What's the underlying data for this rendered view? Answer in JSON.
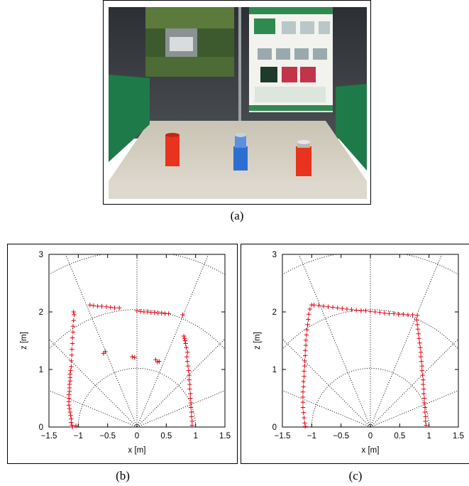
{
  "figure": {
    "photo_caption": "(a)",
    "plot_b_caption": "(b)",
    "plot_c_caption": "(c)"
  },
  "colors": {
    "marker": "#e8000e",
    "grid": "#000000",
    "wall_green": "#1f7a4a",
    "cylinder_red": "#e8331e",
    "cylinder_blue": "#2d6fd1"
  },
  "chart_data": [
    {
      "id": "b",
      "type": "scatter",
      "marker": "plus",
      "xlabel": "x [m]",
      "ylabel": "z [m]",
      "xlim": [
        -1.5,
        1.5
      ],
      "ylim": [
        0,
        3
      ],
      "xticks": [
        "−1.5",
        "−1",
        "−0.5",
        "0",
        "0.5",
        "1",
        "1.5"
      ],
      "yticks": [
        "0",
        "1",
        "2",
        "3"
      ],
      "grid": "polar, dotted, radii 1/2/3 m, rays every 22.5 deg",
      "series": [
        {
          "values": [
            [
              -1.08,
              2.0
            ],
            [
              -1.07,
              1.95
            ],
            [
              -1.08,
              1.85
            ],
            [
              -1.09,
              1.75
            ],
            [
              -1.09,
              1.65
            ],
            [
              -1.1,
              1.55
            ],
            [
              -1.1,
              1.45
            ],
            [
              -1.11,
              1.35
            ],
            [
              -1.11,
              1.25
            ],
            [
              -1.12,
              1.15
            ],
            [
              -1.12,
              1.05
            ],
            [
              -1.13,
              0.98
            ],
            [
              -1.14,
              0.92
            ],
            [
              -1.14,
              0.86
            ],
            [
              -1.14,
              0.8
            ],
            [
              -1.15,
              0.74
            ],
            [
              -1.15,
              0.68
            ],
            [
              -1.15,
              0.62
            ],
            [
              -1.16,
              0.56
            ],
            [
              -1.16,
              0.5
            ],
            [
              -1.16,
              0.44
            ],
            [
              -1.16,
              0.38
            ],
            [
              -1.15,
              0.32
            ],
            [
              -1.14,
              0.26
            ],
            [
              -1.13,
              0.2
            ],
            [
              -1.12,
              0.14
            ],
            [
              -1.12,
              0.08
            ],
            [
              -1.11,
              0.03
            ],
            [
              -1.1,
              0.0
            ],
            [
              -1.04,
              0.02
            ],
            [
              -0.8,
              2.12
            ],
            [
              -0.74,
              2.11
            ],
            [
              -0.67,
              2.1
            ],
            [
              -0.6,
              2.1
            ],
            [
              -0.52,
              2.09
            ],
            [
              -0.45,
              2.08
            ],
            [
              -0.38,
              2.07
            ],
            [
              -0.3,
              2.07
            ],
            [
              0.0,
              2.02
            ],
            [
              0.06,
              2.01
            ],
            [
              0.12,
              2.0
            ],
            [
              0.18,
              2.0
            ],
            [
              0.24,
              1.99
            ],
            [
              0.3,
              1.99
            ],
            [
              0.36,
              1.98
            ],
            [
              0.42,
              1.98
            ],
            [
              0.48,
              1.97
            ],
            [
              0.54,
              1.97
            ],
            [
              0.78,
              1.95
            ],
            [
              0.8,
              1.58
            ],
            [
              0.81,
              1.54
            ],
            [
              0.82,
              1.5
            ],
            [
              0.83,
              1.45
            ],
            [
              0.84,
              1.38
            ],
            [
              0.86,
              1.3
            ],
            [
              0.85,
              1.22
            ],
            [
              0.86,
              1.14
            ],
            [
              0.87,
              1.06
            ],
            [
              0.88,
              0.98
            ],
            [
              0.89,
              0.9
            ],
            [
              0.89,
              0.82
            ],
            [
              0.9,
              0.74
            ],
            [
              0.9,
              0.66
            ],
            [
              0.91,
              0.58
            ],
            [
              0.91,
              0.5
            ],
            [
              0.92,
              0.42
            ],
            [
              0.92,
              0.34
            ],
            [
              0.93,
              0.26
            ],
            [
              0.93,
              0.18
            ],
            [
              0.94,
              0.1
            ],
            [
              0.94,
              0.03
            ],
            [
              -0.57,
              1.28
            ],
            [
              -0.54,
              1.31
            ],
            [
              -0.08,
              1.22
            ],
            [
              -0.04,
              1.21
            ],
            [
              0.32,
              1.17
            ],
            [
              0.35,
              1.13
            ],
            [
              0.38,
              1.14
            ]
          ]
        }
      ]
    },
    {
      "id": "c",
      "type": "scatter",
      "marker": "plus",
      "xlabel": "x [m]",
      "ylabel": "z [m]",
      "xlim": [
        -1.5,
        1.5
      ],
      "ylim": [
        0,
        3
      ],
      "xticks": [
        "−1.5",
        "−1",
        "−0.5",
        "0",
        "0.5",
        "1",
        "1.5"
      ],
      "yticks": [
        "0",
        "1",
        "2",
        "3"
      ],
      "grid": "polar, dotted, radii 1/2/3 m, rays every 22.5 deg",
      "series": [
        {
          "values": [
            [
              -1.0,
              2.12
            ],
            [
              -1.03,
              2.05
            ],
            [
              -1.05,
              1.96
            ],
            [
              -1.06,
              1.87
            ],
            [
              -1.07,
              1.78
            ],
            [
              -1.08,
              1.69
            ],
            [
              -1.09,
              1.6
            ],
            [
              -1.1,
              1.51
            ],
            [
              -1.1,
              1.42
            ],
            [
              -1.11,
              1.33
            ],
            [
              -1.11,
              1.24
            ],
            [
              -1.12,
              1.15
            ],
            [
              -1.12,
              1.06
            ],
            [
              -1.13,
              0.97
            ],
            [
              -1.13,
              0.88
            ],
            [
              -1.14,
              0.79
            ],
            [
              -1.14,
              0.7
            ],
            [
              -1.15,
              0.61
            ],
            [
              -1.15,
              0.52
            ],
            [
              -1.15,
              0.43
            ],
            [
              -1.15,
              0.34
            ],
            [
              -1.14,
              0.25
            ],
            [
              -1.13,
              0.16
            ],
            [
              -1.12,
              0.07
            ],
            [
              -1.11,
              0.01
            ],
            [
              -0.96,
              2.12
            ],
            [
              -0.88,
              2.11
            ],
            [
              -0.8,
              2.1
            ],
            [
              -0.72,
              2.09
            ],
            [
              -0.64,
              2.08
            ],
            [
              -0.56,
              2.07
            ],
            [
              -0.48,
              2.06
            ],
            [
              -0.4,
              2.05
            ],
            [
              -0.32,
              2.04
            ],
            [
              -0.24,
              2.03
            ],
            [
              -0.16,
              2.02
            ],
            [
              -0.08,
              2.02
            ],
            [
              0.0,
              2.01
            ],
            [
              0.08,
              2.0
            ],
            [
              0.16,
              1.99
            ],
            [
              0.24,
              1.98
            ],
            [
              0.32,
              1.97
            ],
            [
              0.4,
              1.97
            ],
            [
              0.48,
              1.96
            ],
            [
              0.56,
              1.96
            ],
            [
              0.64,
              1.95
            ],
            [
              0.72,
              1.95
            ],
            [
              0.8,
              1.94
            ],
            [
              0.79,
              1.86
            ],
            [
              0.8,
              1.78
            ],
            [
              0.81,
              1.7
            ],
            [
              0.82,
              1.62
            ],
            [
              0.83,
              1.54
            ],
            [
              0.84,
              1.46
            ],
            [
              0.85,
              1.38
            ],
            [
              0.86,
              1.3
            ],
            [
              0.86,
              1.22
            ],
            [
              0.87,
              1.14
            ],
            [
              0.88,
              1.06
            ],
            [
              0.88,
              0.98
            ],
            [
              0.89,
              0.9
            ],
            [
              0.9,
              0.82
            ],
            [
              0.9,
              0.74
            ],
            [
              0.91,
              0.66
            ],
            [
              0.91,
              0.58
            ],
            [
              0.92,
              0.5
            ],
            [
              0.92,
              0.42
            ],
            [
              0.93,
              0.34
            ],
            [
              0.93,
              0.26
            ],
            [
              0.94,
              0.18
            ],
            [
              0.94,
              0.1
            ],
            [
              0.95,
              0.03
            ]
          ]
        }
      ]
    }
  ]
}
